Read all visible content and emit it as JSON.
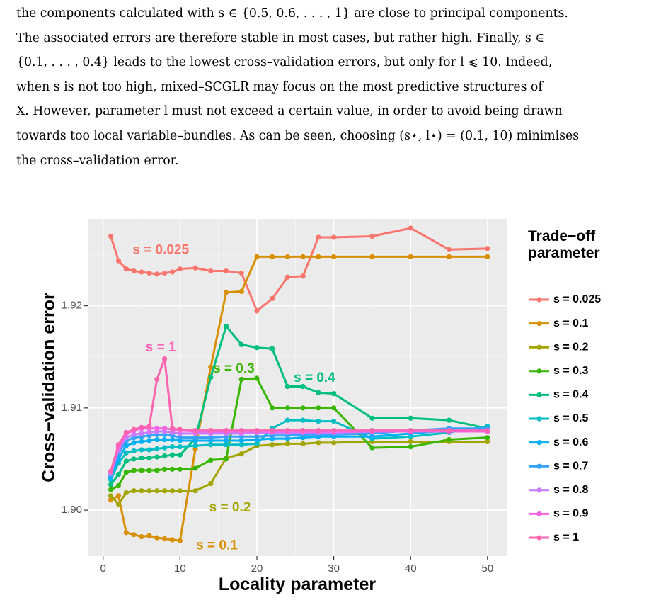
{
  "paragraph": {
    "line1": "the components calculated with s ∈ {0.5, 0.6, . . . , 1} are close to principal components.",
    "line2": "The associated errors are therefore stable in most cases, but rather high.  Finally, s ∈",
    "line3": "{0.1, . . . , 0.4} leads to the lowest cross–validation errors, but only for l ⩽ 10.  Indeed,",
    "line4": "when s is not too high, mixed–SCGLR may focus on the most predictive structures of",
    "line5": "X. However, parameter l must not exceed a certain value, in order to avoid being drawn",
    "line6": "towards too local variable–bundles. As can be seen, choosing (s⋆, l⋆) = (0.1, 10) minimises",
    "line7": "the cross–validation error."
  },
  "chart_data": {
    "type": "line",
    "xlabel": "Locality parameter",
    "ylabel": "Cross−validation error",
    "xlim": [
      -2,
      52.5
    ],
    "ylim": [
      1.8955,
      1.9285
    ],
    "x_ticks": [
      0,
      10,
      20,
      30,
      40,
      50
    ],
    "y_ticks": [
      1.9,
      1.91,
      1.92
    ],
    "y_tick_labels": [
      "1.90",
      "1.91",
      "1.92"
    ],
    "grid": true,
    "legend_title": "Trade−off\nparameter",
    "legend_position": "right",
    "x": [
      1,
      2,
      3,
      4,
      5,
      6,
      7,
      8,
      9,
      10,
      12,
      14,
      16,
      18,
      20,
      22,
      24,
      26,
      28,
      30,
      35,
      40,
      45,
      50
    ],
    "series": [
      {
        "name": "s = 0.025",
        "color": "#F8766D",
        "values": [
          1.9268,
          1.9244,
          1.9236,
          1.9234,
          1.9233,
          1.9232,
          1.9231,
          1.9232,
          1.9233,
          1.9236,
          1.9237,
          1.9234,
          1.9234,
          1.9232,
          1.9195,
          1.9207,
          1.9228,
          1.9229,
          1.9267,
          1.9267,
          1.9268,
          1.9276,
          1.9255,
          1.9256
        ]
      },
      {
        "name": "s = 0.1",
        "color": "#D89000",
        "values": [
          1.901,
          1.9014,
          1.8978,
          1.8976,
          1.8974,
          1.8975,
          1.8973,
          1.8972,
          1.8971,
          1.897,
          1.906,
          1.914,
          1.9213,
          1.9214,
          1.9248,
          1.9248,
          1.9248,
          1.9248,
          1.9248,
          1.9248,
          1.9248,
          1.9248,
          1.9248,
          1.9248
        ]
      },
      {
        "name": "s = 0.2",
        "color": "#A3A500",
        "values": [
          1.9014,
          1.9006,
          1.9017,
          1.9019,
          1.9019,
          1.9019,
          1.9019,
          1.9019,
          1.9019,
          1.9019,
          1.9019,
          1.9026,
          1.9051,
          1.9055,
          1.9063,
          1.9064,
          1.9065,
          1.9065,
          1.9066,
          1.9066,
          1.9067,
          1.9067,
          1.9067,
          1.9067
        ]
      },
      {
        "name": "s = 0.3",
        "color": "#39B600",
        "values": [
          1.902,
          1.9024,
          1.9037,
          1.9039,
          1.9039,
          1.9039,
          1.9039,
          1.904,
          1.904,
          1.904,
          1.9041,
          1.9049,
          1.905,
          1.9128,
          1.9129,
          1.91,
          1.91,
          1.91,
          1.91,
          1.91,
          1.9061,
          1.9062,
          1.9069,
          1.9071
        ]
      },
      {
        "name": "s = 0.4",
        "color": "#00BF7D",
        "values": [
          1.9025,
          1.9035,
          1.9048,
          1.905,
          1.9051,
          1.9051,
          1.9052,
          1.9053,
          1.9054,
          1.9054,
          1.907,
          1.913,
          1.918,
          1.9162,
          1.9159,
          1.9158,
          1.9121,
          1.9121,
          1.9115,
          1.9114,
          1.909,
          1.909,
          1.9088,
          1.908
        ]
      },
      {
        "name": "s = 0.5",
        "color": "#00BFC4",
        "values": [
          1.903,
          1.9046,
          1.9056,
          1.9058,
          1.9059,
          1.9059,
          1.906,
          1.9061,
          1.9062,
          1.9062,
          1.9063,
          1.9064,
          1.9064,
          1.9064,
          1.9065,
          1.908,
          1.9088,
          1.9088,
          1.9087,
          1.9087,
          1.907,
          1.9072,
          1.9076,
          1.9082
        ]
      },
      {
        "name": "s = 0.6",
        "color": "#00B0F6",
        "values": [
          1.9032,
          1.905,
          1.9063,
          1.9066,
          1.9067,
          1.9068,
          1.9069,
          1.9069,
          1.9069,
          1.9068,
          1.9068,
          1.9068,
          1.9068,
          1.9068,
          1.9069,
          1.907,
          1.907,
          1.9071,
          1.9072,
          1.9072,
          1.9072,
          1.9075,
          1.9078,
          1.9078
        ]
      },
      {
        "name": "s = 0.7",
        "color": "#35A2FF",
        "values": [
          1.9034,
          1.9055,
          1.9068,
          1.9071,
          1.9072,
          1.9073,
          1.9074,
          1.9074,
          1.9073,
          1.9071,
          1.9071,
          1.9071,
          1.9072,
          1.9072,
          1.9072,
          1.9073,
          1.9073,
          1.9074,
          1.9074,
          1.9074,
          1.9075,
          1.9078,
          1.908,
          1.908
        ]
      },
      {
        "name": "s = 0.8",
        "color": "#C77CFF",
        "values": [
          1.9036,
          1.9059,
          1.9071,
          1.9074,
          1.9075,
          1.9076,
          1.9077,
          1.9077,
          1.9076,
          1.9075,
          1.9075,
          1.9075,
          1.9075,
          1.9075,
          1.9076,
          1.9076,
          1.9076,
          1.9076,
          1.9076,
          1.9076,
          1.9077,
          1.9077,
          1.9077,
          1.9077
        ]
      },
      {
        "name": "s = 0.9",
        "color": "#F564E3",
        "values": [
          1.9038,
          1.9062,
          1.9075,
          1.9078,
          1.908,
          1.908,
          1.908,
          1.908,
          1.9079,
          1.9078,
          1.9077,
          1.9077,
          1.9077,
          1.9077,
          1.9077,
          1.9077,
          1.9077,
          1.9077,
          1.9077,
          1.9077,
          1.9077,
          1.9077,
          1.9077,
          1.9077
        ]
      },
      {
        "name": "s = 1",
        "color": "#FF64B0",
        "values": [
          1.9038,
          1.9064,
          1.9076,
          1.9079,
          1.9081,
          1.9082,
          1.9128,
          1.9148,
          1.908,
          1.9079,
          1.9078,
          1.9078,
          1.9078,
          1.9078,
          1.9078,
          1.9078,
          1.9078,
          1.9078,
          1.9078,
          1.9078,
          1.9078,
          1.9078,
          1.9078,
          1.9078
        ]
      }
    ],
    "annotations": [
      {
        "text": "s = 0.025",
        "x": 7.5,
        "y": 1.9254,
        "color": "#F8766D"
      },
      {
        "text": "s = 1",
        "x": 7.5,
        "y": 1.9159,
        "color": "#FF64B0"
      },
      {
        "text": "s = 0.3",
        "x": 17,
        "y": 1.9138,
        "color": "#39B600"
      },
      {
        "text": "s = 0.4",
        "x": 27.5,
        "y": 1.9129,
        "color": "#00BF7D"
      },
      {
        "text": "s = 0.2",
        "x": 16.5,
        "y": 1.9002,
        "color": "#A3A500"
      },
      {
        "text": "s = 0.1",
        "x": 14.8,
        "y": 1.8965,
        "color": "#D89000"
      }
    ]
  }
}
